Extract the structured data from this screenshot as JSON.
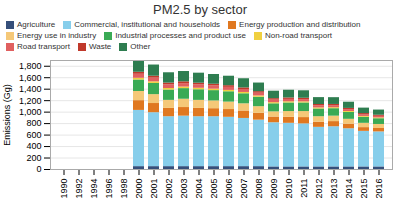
{
  "chart_data": {
    "type": "bar",
    "stacked": true,
    "title": "PM2.5 by sector",
    "ylabel": "Emissions (Gg)",
    "categories": [
      "1990",
      "1992",
      "1994",
      "1996",
      "1998",
      "2000",
      "2001",
      "2002",
      "2003",
      "2004",
      "2005",
      "2006",
      "2007",
      "2008",
      "2009",
      "2010",
      "2011",
      "2012",
      "2013",
      "2014",
      "2015",
      "2016"
    ],
    "series": [
      {
        "name": "Agriculture",
        "color": "#354f7a",
        "values": [
          null,
          null,
          null,
          null,
          null,
          50,
          50,
          50,
          50,
          50,
          50,
          50,
          50,
          50,
          45,
          45,
          45,
          45,
          45,
          45,
          45,
          45
        ]
      },
      {
        "name": "Commercial, institutional and households",
        "color": "#87ceeb",
        "values": [
          null,
          null,
          null,
          null,
          null,
          980,
          940,
          870,
          880,
          870,
          870,
          860,
          840,
          810,
          770,
          760,
          750,
          690,
          700,
          665,
          620,
          610
        ]
      },
      {
        "name": "Energy production and distribution",
        "color": "#e07820",
        "values": [
          null,
          null,
          null,
          null,
          null,
          170,
          160,
          145,
          150,
          145,
          140,
          135,
          130,
          120,
          100,
          105,
          110,
          90,
          90,
          80,
          65,
          60
        ]
      },
      {
        "name": "Energy use in industry",
        "color": "#f5c878",
        "values": [
          null,
          null,
          null,
          null,
          null,
          160,
          155,
          140,
          145,
          140,
          135,
          130,
          125,
          115,
          90,
          100,
          105,
          95,
          95,
          85,
          75,
          70
        ]
      },
      {
        "name": "Industrial processes and product use",
        "color": "#3aaa55",
        "values": [
          null,
          null,
          null,
          null,
          null,
          200,
          195,
          180,
          185,
          185,
          180,
          180,
          175,
          165,
          140,
          150,
          150,
          135,
          130,
          120,
          105,
          100
        ]
      },
      {
        "name": "Non-road transport",
        "color": "#f0d040",
        "values": [
          null,
          null,
          null,
          null,
          null,
          30,
          28,
          27,
          27,
          26,
          25,
          24,
          23,
          22,
          20,
          20,
          19,
          18,
          17,
          16,
          15,
          14
        ]
      },
      {
        "name": "Road transport",
        "color": "#e06060",
        "values": [
          null,
          null,
          null,
          null,
          null,
          70,
          65,
          62,
          60,
          58,
          56,
          53,
          51,
          48,
          44,
          42,
          39,
          37,
          35,
          33,
          30,
          28
        ]
      },
      {
        "name": "Waste",
        "color": "#c0392b",
        "values": [
          null,
          null,
          null,
          null,
          null,
          35,
          33,
          32,
          31,
          30,
          30,
          29,
          28,
          27,
          26,
          25,
          24,
          23,
          22,
          21,
          20,
          19
        ]
      },
      {
        "name": "Other",
        "color": "#2e7d50",
        "values": [
          null,
          null,
          null,
          null,
          null,
          200,
          195,
          180,
          180,
          175,
          170,
          165,
          160,
          150,
          130,
          135,
          130,
          120,
          118,
          108,
          95,
          90
        ]
      }
    ],
    "ylim": [
      0,
      1900
    ],
    "yticks": [
      0,
      200,
      400,
      600,
      800,
      1000,
      1200,
      1400,
      1600,
      1800
    ],
    "grid": true,
    "legend": "upper left"
  }
}
